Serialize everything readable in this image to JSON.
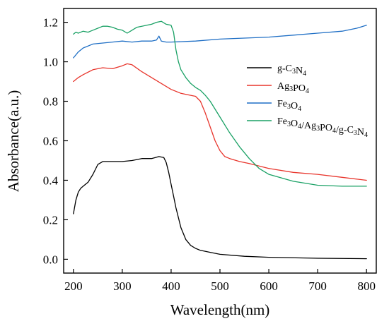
{
  "chart_data": {
    "type": "line",
    "title": "",
    "xlabel": "Wavelength(nm)",
    "ylabel": "Absorbance(a.u.)",
    "xlim": [
      180,
      820
    ],
    "ylim": [
      -0.07,
      1.27
    ],
    "xticks": [
      200,
      300,
      400,
      500,
      600,
      700,
      800
    ],
    "yticks": [
      0.0,
      0.2,
      0.4,
      0.6,
      0.8,
      1.0,
      1.2
    ],
    "ytick_labels": [
      "0.0",
      "0.2",
      "0.4",
      "0.6",
      "0.8",
      "1.0",
      "1.2"
    ],
    "xtick_labels": [
      "200",
      "300",
      "400",
      "500",
      "600",
      "700",
      "800"
    ],
    "grid": false,
    "legend_position": "center-right",
    "series": [
      {
        "name": "g-C3N4",
        "legend_parts": [
          [
            "g-C",
            ""
          ],
          [
            "3",
            "sub"
          ],
          [
            "N",
            ""
          ],
          [
            "4",
            "sub"
          ]
        ],
        "color": "#000000",
        "x": [
          200,
          205,
          210,
          215,
          220,
          230,
          240,
          250,
          260,
          280,
          300,
          320,
          340,
          360,
          375,
          385,
          390,
          395,
          400,
          405,
          410,
          415,
          420,
          430,
          440,
          450,
          460,
          480,
          500,
          550,
          600,
          700,
          800
        ],
        "y": [
          0.23,
          0.3,
          0.34,
          0.36,
          0.37,
          0.39,
          0.43,
          0.48,
          0.495,
          0.495,
          0.495,
          0.5,
          0.51,
          0.51,
          0.52,
          0.515,
          0.49,
          0.44,
          0.38,
          0.32,
          0.26,
          0.21,
          0.16,
          0.1,
          0.07,
          0.055,
          0.045,
          0.035,
          0.025,
          0.015,
          0.01,
          0.005,
          0.003
        ]
      },
      {
        "name": "Ag3PO4",
        "legend_parts": [
          [
            "Ag",
            ""
          ],
          [
            "3",
            "sub"
          ],
          [
            "PO",
            ""
          ],
          [
            "4",
            "sub"
          ]
        ],
        "color": "#e8352c",
        "x": [
          200,
          210,
          220,
          240,
          260,
          280,
          300,
          310,
          320,
          340,
          360,
          380,
          400,
          420,
          440,
          450,
          460,
          470,
          480,
          490,
          500,
          510,
          520,
          540,
          560,
          600,
          650,
          700,
          750,
          800
        ],
        "y": [
          0.9,
          0.92,
          0.935,
          0.96,
          0.97,
          0.965,
          0.98,
          0.99,
          0.985,
          0.95,
          0.92,
          0.89,
          0.86,
          0.84,
          0.83,
          0.825,
          0.8,
          0.74,
          0.67,
          0.6,
          0.55,
          0.52,
          0.51,
          0.495,
          0.485,
          0.46,
          0.44,
          0.43,
          0.415,
          0.4
        ]
      },
      {
        "name": "Fe3O4",
        "legend_parts": [
          [
            "Fe",
            ""
          ],
          [
            "3",
            "sub"
          ],
          [
            "O",
            ""
          ],
          [
            "4",
            "sub"
          ]
        ],
        "color": "#1f6fc5",
        "x": [
          200,
          210,
          220,
          240,
          260,
          280,
          300,
          320,
          340,
          360,
          370,
          375,
          380,
          390,
          400,
          450,
          500,
          550,
          600,
          650,
          700,
          750,
          780,
          800
        ],
        "y": [
          1.02,
          1.05,
          1.07,
          1.09,
          1.095,
          1.1,
          1.105,
          1.1,
          1.105,
          1.105,
          1.11,
          1.13,
          1.105,
          1.1,
          1.1,
          1.105,
          1.115,
          1.12,
          1.125,
          1.135,
          1.145,
          1.155,
          1.17,
          1.185
        ]
      },
      {
        "name": "Fe3O4/Ag3PO4/g-C3N4",
        "legend_parts": [
          [
            "Fe",
            ""
          ],
          [
            "3",
            "sub"
          ],
          [
            "O",
            ""
          ],
          [
            "4",
            "sub"
          ],
          [
            "/Ag",
            ""
          ],
          [
            "3",
            "sub"
          ],
          [
            "PO",
            ""
          ],
          [
            "4",
            "sub"
          ],
          [
            "/g-C",
            ""
          ],
          [
            "3",
            "sub"
          ],
          [
            "N",
            ""
          ],
          [
            "4",
            "sub"
          ]
        ],
        "color": "#1aa165",
        "x": [
          200,
          205,
          210,
          220,
          230,
          240,
          250,
          260,
          270,
          280,
          290,
          300,
          310,
          320,
          330,
          340,
          350,
          360,
          370,
          380,
          390,
          400,
          405,
          410,
          415,
          420,
          430,
          440,
          450,
          460,
          470,
          480,
          500,
          520,
          540,
          560,
          580,
          600,
          650,
          700,
          750,
          800
        ],
        "y": [
          1.14,
          1.15,
          1.145,
          1.155,
          1.15,
          1.16,
          1.17,
          1.18,
          1.18,
          1.175,
          1.165,
          1.16,
          1.145,
          1.16,
          1.175,
          1.18,
          1.185,
          1.19,
          1.2,
          1.205,
          1.19,
          1.185,
          1.15,
          1.06,
          1.0,
          0.96,
          0.92,
          0.89,
          0.87,
          0.855,
          0.83,
          0.8,
          0.72,
          0.64,
          0.57,
          0.51,
          0.46,
          0.43,
          0.395,
          0.375,
          0.37,
          0.37
        ]
      }
    ]
  }
}
